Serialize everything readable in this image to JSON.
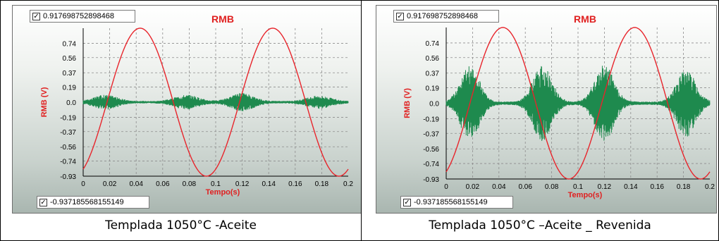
{
  "colors": {
    "sinusoid": "#e8242b",
    "signal": "#1e8a4e",
    "title": "#e02020",
    "grid": "#8c8c8c"
  },
  "chart_data": [
    {
      "type": "line",
      "title": "RMB",
      "xlabel": "Tempo(s)",
      "ylabel": "RMB (V)",
      "xlim": [
        0,
        0.2
      ],
      "ylim": [
        -0.93,
        0.93
      ],
      "x_ticks": [
        "0",
        "0.02",
        "0.04",
        "0.06",
        "0.08",
        "0.1",
        "0.12",
        "0.14",
        "0.16",
        "0.18",
        "0.2"
      ],
      "y_ticks": [
        "0.74",
        "0.56",
        "0.37",
        "0.19",
        "0.0",
        "-0.19",
        "-0.37",
        "-0.56",
        "-0.74",
        "-0.93"
      ],
      "grid": true,
      "max_value": "0.917698752898468",
      "min_value": "-0.937185568155149",
      "max_checked": true,
      "min_checked": true,
      "series": [
        {
          "color": "#e8242b",
          "shape": "sine",
          "amplitude": 0.93,
          "period": 0.1,
          "phase": 0.018,
          "values": []
        },
        {
          "color": "#1e8a4e",
          "shape": "bursts",
          "baseline_amplitude": 0.015,
          "burst_centers": [
            0.017,
            0.078,
            0.12,
            0.178
          ],
          "burst_amplitudes": [
            0.08,
            0.08,
            0.1,
            0.07
          ],
          "burst_width": 0.012
        }
      ]
    },
    {
      "type": "line",
      "title": "RMB",
      "xlabel": "Tempo(s)",
      "ylabel": "RMB (V)",
      "xlim": [
        0,
        0.2
      ],
      "ylim": [
        -0.93,
        0.93
      ],
      "x_ticks": [
        "0",
        "0.02",
        "0.04",
        "0.06",
        "0.08",
        "0.1",
        "0.12",
        "0.14",
        "0.16",
        "0.18",
        "0.2"
      ],
      "y_ticks": [
        "0.74",
        "0.56",
        "0.37",
        "0.19",
        "0.0",
        "-0.19",
        "-0.37",
        "-0.56",
        "-0.74",
        "-0.93"
      ],
      "grid": true,
      "max_value": "0.917698752898468",
      "min_value": "-0.937185568155149",
      "max_checked": true,
      "min_checked": true,
      "series": [
        {
          "color": "#e8242b",
          "shape": "sine",
          "amplitude": 0.93,
          "period": 0.1,
          "phase": 0.018,
          "values": []
        },
        {
          "color": "#1e8a4e",
          "shape": "bursts",
          "baseline_amplitude": 0.02,
          "burst_centers": [
            0.018,
            0.073,
            0.12,
            0.182
          ],
          "burst_amplitudes": [
            0.45,
            0.45,
            0.46,
            0.4
          ],
          "burst_width": 0.01
        }
      ]
    }
  ],
  "captions": [
    "Templada 1050°C -Aceite",
    "Templada 1050°C –Aceite _ Revenida"
  ]
}
